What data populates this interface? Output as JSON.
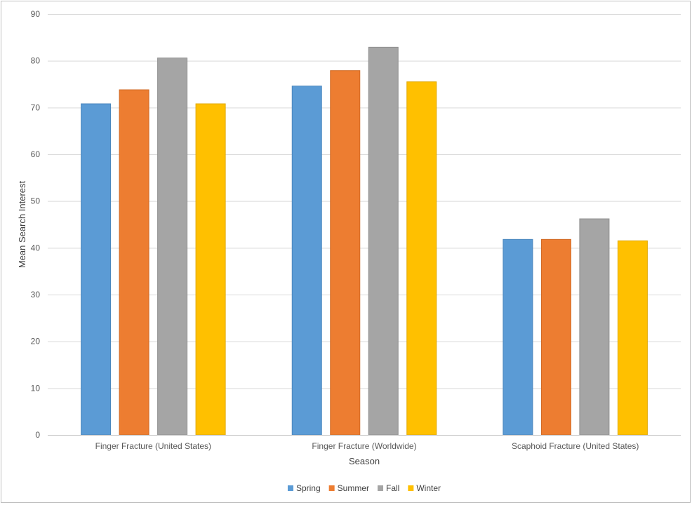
{
  "chart_data": {
    "type": "bar",
    "title": "",
    "xlabel": "Season",
    "ylabel": "Mean Search Interest",
    "ylim": [
      0,
      90
    ],
    "yticks": [
      0,
      10,
      20,
      30,
      40,
      50,
      60,
      70,
      80,
      90
    ],
    "grid": true,
    "legend_position": "bottom",
    "categories": [
      "Finger Fracture (United States)",
      "Finger Fracture (Worldwide)",
      "Scaphoid Fracture (United States)"
    ],
    "series": [
      {
        "name": "Spring",
        "color": "#5b9bd5",
        "border": "#4a86bd",
        "values": [
          70.8,
          74.6,
          41.8
        ]
      },
      {
        "name": "Summer",
        "color": "#ed7d31",
        "border": "#d06a25",
        "values": [
          73.8,
          77.9,
          41.8
        ]
      },
      {
        "name": "Fall",
        "color": "#a5a5a5",
        "border": "#8f8f8f",
        "values": [
          80.6,
          82.9,
          46.2
        ]
      },
      {
        "name": "Winter",
        "color": "#ffc000",
        "border": "#e0a800",
        "values": [
          70.8,
          75.5,
          41.5
        ]
      }
    ]
  }
}
